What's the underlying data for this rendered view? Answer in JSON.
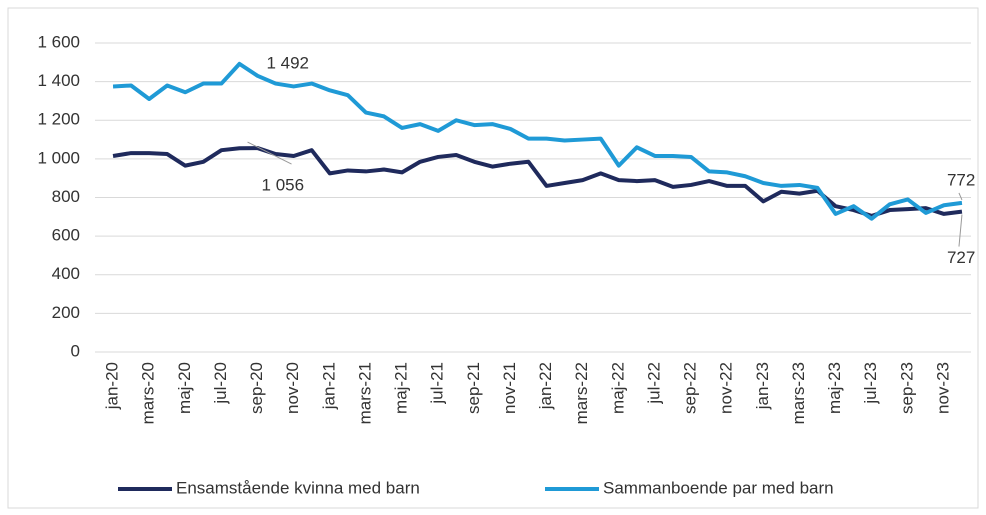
{
  "chart_data": {
    "type": "line",
    "categories": [
      "jan-20",
      null,
      "mars-20",
      null,
      "maj-20",
      null,
      "jul-20",
      null,
      "sep-20",
      null,
      "nov-20",
      null,
      "jan-21",
      null,
      "mars-21",
      null,
      "maj-21",
      null,
      "jul-21",
      null,
      "sep-21",
      null,
      "nov-21",
      null,
      "jan-22",
      null,
      "mars-22",
      null,
      "maj-22",
      null,
      "jul-22",
      null,
      "sep-22",
      null,
      "nov-22",
      null,
      "jan-23",
      null,
      "mars-23",
      null,
      "maj-23",
      null,
      "jul-23",
      null,
      "sep-23",
      null,
      "nov-23",
      null
    ],
    "series": [
      {
        "name": "Ensamstående kvinna med barn",
        "color": "#1f2a5c",
        "values": [
          1015,
          1030,
          1030,
          1025,
          965,
          985,
          1045,
          1055,
          1056,
          1025,
          1015,
          1045,
          925,
          940,
          935,
          945,
          930,
          985,
          1010,
          1020,
          985,
          960,
          975,
          985,
          860,
          875,
          890,
          925,
          890,
          885,
          890,
          855,
          865,
          885,
          860,
          860,
          780,
          830,
          820,
          835,
          755,
          735,
          705,
          735,
          740,
          745,
          715,
          727
        ],
        "value_labels": [
          null,
          null,
          null,
          null,
          null,
          null,
          null,
          null,
          "1 056",
          null,
          null,
          null,
          null,
          null,
          null,
          null,
          null,
          null,
          null,
          null,
          null,
          null,
          null,
          null,
          null,
          null,
          null,
          null,
          null,
          null,
          null,
          null,
          null,
          null,
          null,
          null,
          null,
          null,
          null,
          null,
          null,
          null,
          null,
          null,
          null,
          null,
          null,
          "727"
        ]
      },
      {
        "name": "Sammanboende par med barn",
        "color": "#1f9ad6",
        "values": [
          1375,
          1380,
          1310,
          1380,
          1345,
          1390,
          1390,
          1492,
          1430,
          1390,
          1375,
          1390,
          1355,
          1330,
          1240,
          1220,
          1160,
          1180,
          1145,
          1200,
          1175,
          1180,
          1155,
          1105,
          1105,
          1095,
          1100,
          1105,
          965,
          1060,
          1015,
          1015,
          1010,
          935,
          930,
          910,
          875,
          860,
          865,
          850,
          715,
          755,
          690,
          765,
          790,
          720,
          760,
          772
        ],
        "value_labels": [
          null,
          null,
          null,
          null,
          null,
          null,
          null,
          "1 492",
          null,
          null,
          null,
          null,
          null,
          null,
          null,
          null,
          null,
          null,
          null,
          null,
          null,
          null,
          null,
          null,
          null,
          null,
          null,
          null,
          null,
          null,
          null,
          null,
          null,
          null,
          null,
          null,
          null,
          null,
          null,
          null,
          null,
          null,
          null,
          null,
          null,
          null,
          null,
          "772"
        ]
      }
    ],
    "ylim": [
      0,
      1600
    ],
    "yticks": [
      0,
      200,
      400,
      600,
      800,
      {
        "value": 1000,
        "label": "1 000"
      },
      {
        "value": 1200,
        "label": "1 200"
      },
      {
        "value": 1400,
        "label": "1 400"
      },
      {
        "value": 1600,
        "label": "1 600"
      }
    ],
    "grid": true,
    "legend": "bottom"
  }
}
